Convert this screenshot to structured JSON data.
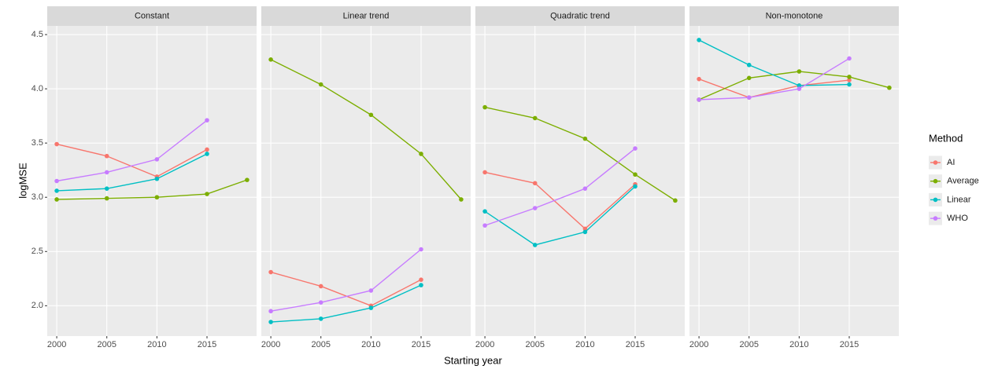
{
  "y_label": "logMSE",
  "x_label": "Starting year",
  "legend_title": "Method",
  "ylim": [
    1.72,
    4.58
  ],
  "yticks": [
    {
      "value": 2,
      "label": "2.0"
    },
    {
      "value": 2.5,
      "label": "2.5"
    },
    {
      "value": 3,
      "label": "3.0"
    },
    {
      "value": 3.5,
      "label": "3.5"
    },
    {
      "value": 4,
      "label": "4.0"
    },
    {
      "value": 4.5,
      "label": "4.5"
    }
  ],
  "chart_data": [
    {
      "type": "line",
      "title": "Constant",
      "x": [
        2000,
        2005,
        2010,
        2015,
        2019
      ],
      "xlim": [
        1999.05,
        2019.95
      ],
      "xticks": [
        2000,
        2005,
        2010,
        2015
      ],
      "series": [
        {
          "name": "AI",
          "color": "#f8766d",
          "values": [
            3.49,
            3.38,
            3.19,
            3.44,
            null
          ]
        },
        {
          "name": "Average",
          "color": "#7cae00",
          "values": [
            2.98,
            2.99,
            3.0,
            3.03,
            3.16
          ]
        },
        {
          "name": "Linear",
          "color": "#00bfc4",
          "values": [
            3.06,
            3.08,
            3.17,
            3.4,
            null
          ]
        },
        {
          "name": "WHO",
          "color": "#c77cff",
          "values": [
            3.15,
            3.23,
            3.35,
            3.71,
            null
          ]
        }
      ]
    },
    {
      "type": "line",
      "title": "Linear trend",
      "x": [
        2000,
        2005,
        2010,
        2015,
        2019
      ],
      "xlim": [
        1999.05,
        2019.95
      ],
      "xticks": [
        2000,
        2005,
        2010,
        2015
      ],
      "series": [
        {
          "name": "AI",
          "color": "#f8766d",
          "values": [
            2.31,
            2.18,
            2.0,
            2.24,
            null
          ]
        },
        {
          "name": "Average",
          "color": "#7cae00",
          "values": [
            4.27,
            4.04,
            3.76,
            3.4,
            2.98
          ]
        },
        {
          "name": "Linear",
          "color": "#00bfc4",
          "values": [
            1.85,
            1.88,
            1.98,
            2.19,
            null
          ]
        },
        {
          "name": "WHO",
          "color": "#c77cff",
          "values": [
            1.95,
            2.03,
            2.14,
            2.52,
            null
          ]
        }
      ]
    },
    {
      "type": "line",
      "title": "Quadratic trend",
      "x": [
        2000,
        2005,
        2010,
        2015,
        2019
      ],
      "xlim": [
        1999.05,
        2019.95
      ],
      "xticks": [
        2000,
        2005,
        2010,
        2015
      ],
      "series": [
        {
          "name": "AI",
          "color": "#f8766d",
          "values": [
            3.23,
            3.13,
            2.71,
            3.12,
            null
          ]
        },
        {
          "name": "Average",
          "color": "#7cae00",
          "values": [
            3.83,
            3.73,
            3.54,
            3.21,
            2.97
          ]
        },
        {
          "name": "Linear",
          "color": "#00bfc4",
          "values": [
            2.87,
            2.56,
            2.68,
            3.1,
            null
          ]
        },
        {
          "name": "WHO",
          "color": "#c77cff",
          "values": [
            2.74,
            2.9,
            3.08,
            3.45,
            null
          ]
        }
      ]
    },
    {
      "type": "line",
      "title": "Non-monotone",
      "x": [
        2000,
        2005,
        2010,
        2015,
        2019
      ],
      "xlim": [
        1999.05,
        2019.95
      ],
      "xticks": [
        2000,
        2005,
        2010,
        2015
      ],
      "series": [
        {
          "name": "AI",
          "color": "#f8766d",
          "values": [
            4.09,
            3.92,
            4.03,
            4.08,
            null
          ]
        },
        {
          "name": "Average",
          "color": "#7cae00",
          "values": [
            3.9,
            4.1,
            4.16,
            4.11,
            4.01
          ]
        },
        {
          "name": "Linear",
          "color": "#00bfc4",
          "values": [
            4.45,
            4.22,
            4.03,
            4.04,
            null
          ]
        },
        {
          "name": "WHO",
          "color": "#c77cff",
          "values": [
            3.9,
            3.92,
            4.0,
            4.28,
            null
          ]
        }
      ]
    }
  ]
}
